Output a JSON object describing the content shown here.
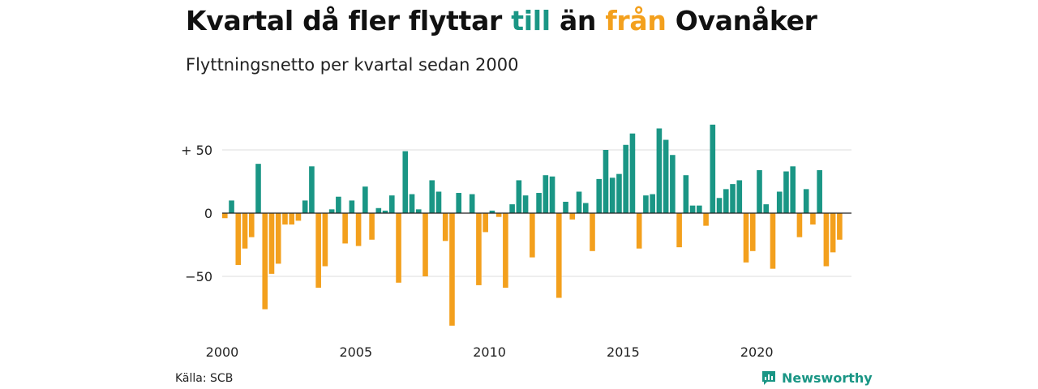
{
  "title": {
    "part1": "Kvartal då fler flyttar",
    "in_word": "till",
    "part2": "än",
    "out_word": "från",
    "part3": "Ovanåker"
  },
  "subtitle": "Flyttningsnetto per kvartal sedan 2000",
  "source": "Källa: SCB",
  "brand": {
    "name": "Newsworthy",
    "icon": "newsworthy-logo-icon"
  },
  "colors": {
    "positive": "#1a9685",
    "negative": "#f3a01d",
    "grid": "#dddddd",
    "zero": "#222222"
  },
  "chart_data": {
    "type": "bar",
    "title": "Kvartal då fler flyttar till än från Ovanåker",
    "subtitle": "Flyttningsnetto per kvartal sedan 2000",
    "x_unit": "quarter",
    "start": "2000-Q1",
    "x_ticks": [
      "2000",
      "2005",
      "2010",
      "2015",
      "2020"
    ],
    "y_ticks": [
      50,
      0,
      -50
    ],
    "y_tick_labels": [
      "+ 50",
      "0",
      "−50"
    ],
    "ylim": [
      -90,
      72
    ],
    "grid": true,
    "legend": "none",
    "series": [
      {
        "values": [
          -4,
          10,
          -41,
          -28,
          -19,
          39,
          -76,
          -48,
          -40,
          -9,
          -9,
          -6,
          10,
          37,
          -59,
          -42,
          3,
          13,
          -24,
          10,
          -26,
          21,
          -21,
          4,
          2,
          14,
          -55,
          49,
          15,
          3,
          -50,
          26,
          17,
          -22,
          -89,
          16,
          0,
          15,
          -57,
          -15,
          2,
          -3,
          -59,
          7,
          26,
          14,
          -35,
          16,
          30,
          29,
          -67,
          9,
          -5,
          17,
          8,
          -30,
          27,
          50,
          28,
          31,
          54,
          63,
          -28,
          14,
          15,
          67,
          58,
          46,
          -27,
          30,
          6,
          6,
          -10,
          70,
          12,
          19,
          23,
          26,
          -39,
          -30,
          34,
          7,
          -44,
          17,
          33,
          37,
          -19,
          19,
          -9,
          34,
          -42,
          -31,
          -21
        ]
      }
    ]
  }
}
